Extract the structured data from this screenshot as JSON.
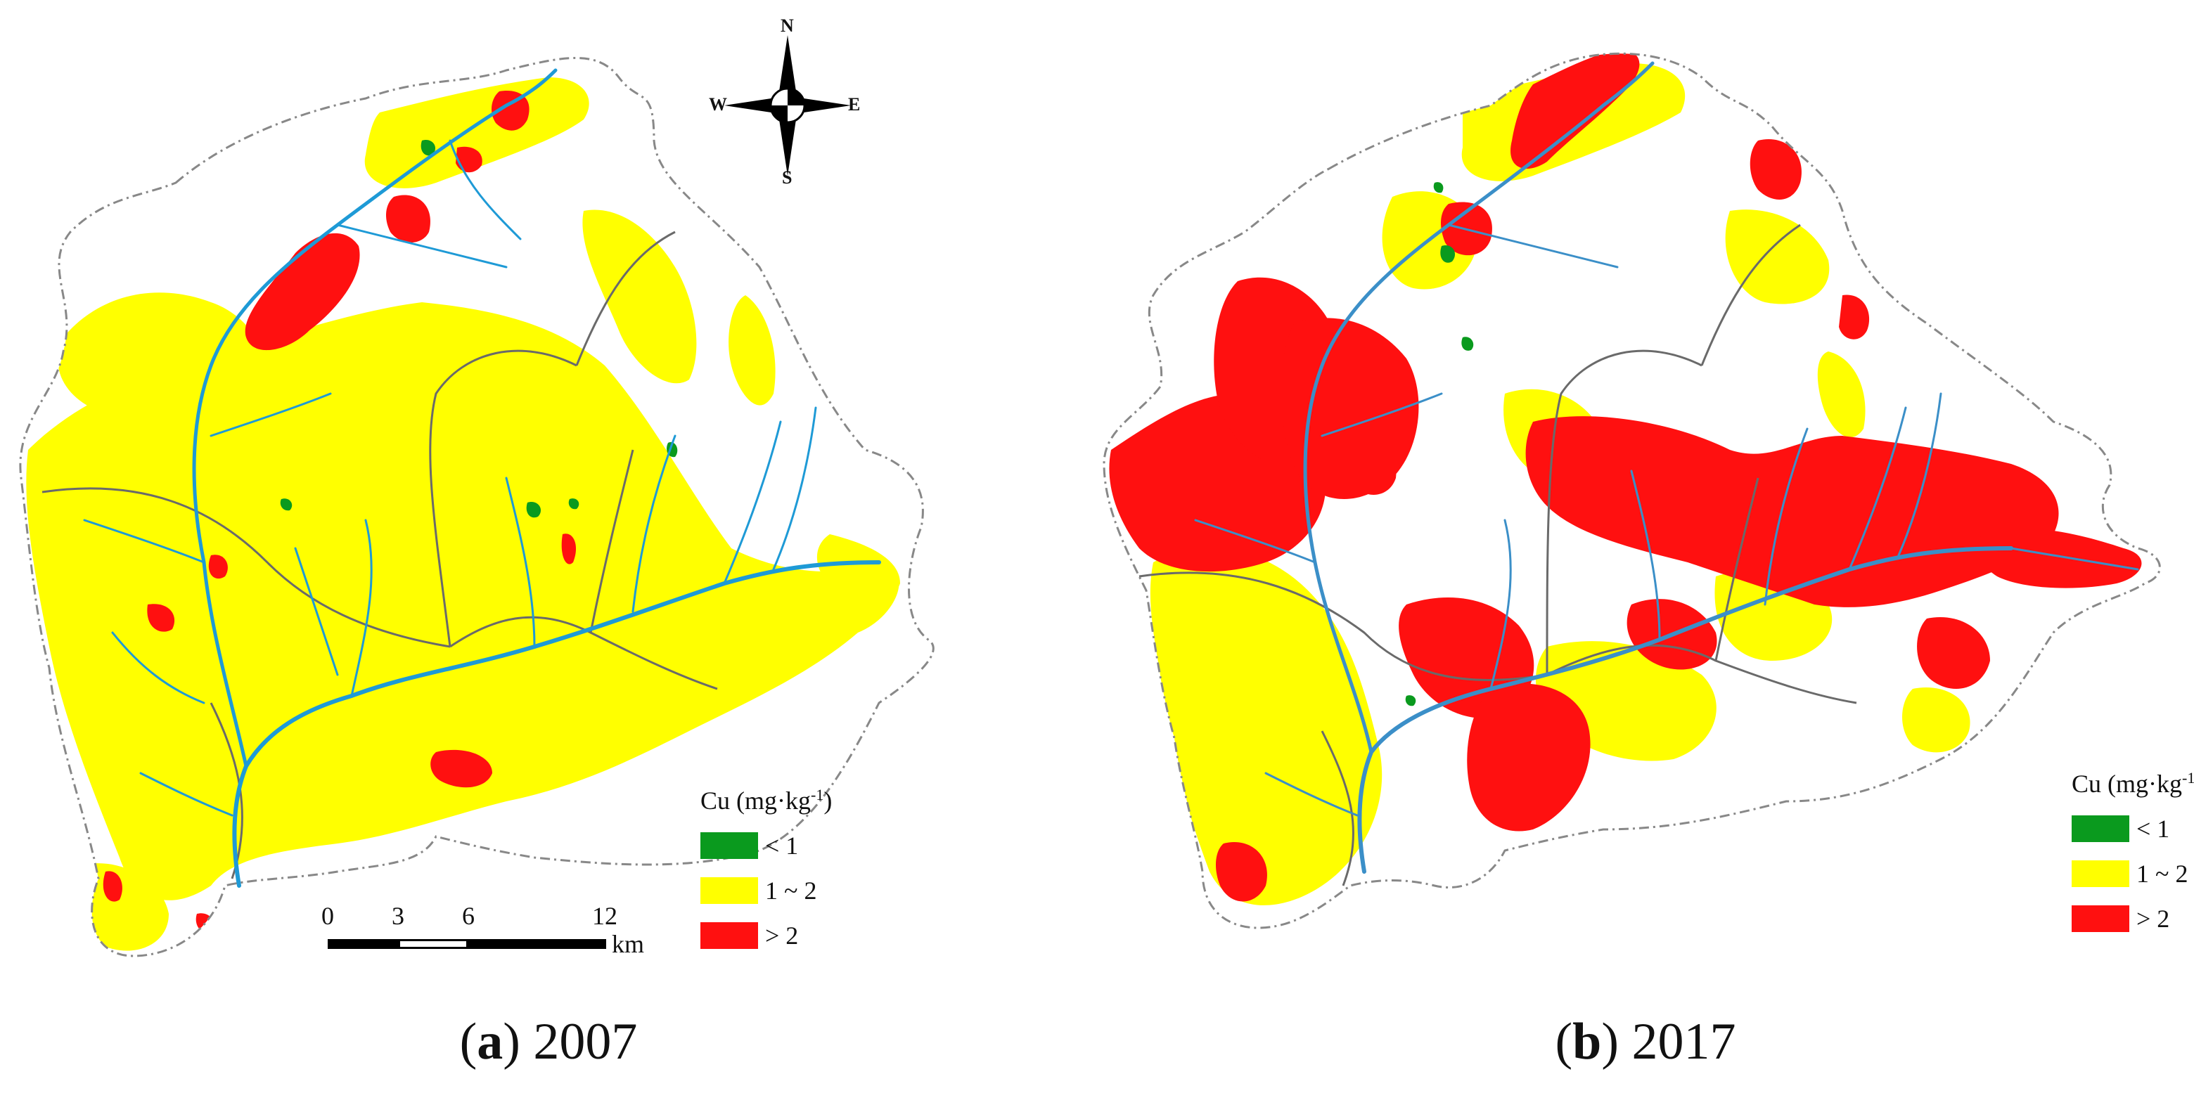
{
  "colors": {
    "class_low": "#0a9a1e",
    "class_mid": "#ffff00",
    "class_high": "#ff1010",
    "river": "#1e9ad6",
    "boundary": "#6a6a6a",
    "outline": "#888888"
  },
  "panels": [
    {
      "caption_letter": "a",
      "caption_year": "2007",
      "legend": {
        "title_text": "Cu (mg·kg",
        "title_sup": "-1",
        "title_close": ")",
        "items": [
          {
            "label": "< 1",
            "class": "low"
          },
          {
            "label": "1 ~ 2",
            "class": "mid"
          },
          {
            "label": "> 2",
            "class": "high"
          }
        ]
      },
      "scalebar": {
        "ticks": [
          "0",
          "3",
          "6",
          "12"
        ],
        "unit": "km"
      },
      "compass": {
        "n": "N",
        "s": "S",
        "e": "E",
        "w": "W"
      },
      "dominant_class": "mid"
    },
    {
      "caption_letter": "b",
      "caption_year": "2017",
      "legend": {
        "title_text": "Cu (mg·kg",
        "title_sup": "-1",
        "title_close": ")",
        "items": [
          {
            "label": "< 1",
            "class": "low"
          },
          {
            "label": "1 ~ 2",
            "class": "mid"
          },
          {
            "label": "> 2",
            "class": "high"
          }
        ]
      },
      "dominant_class": "high"
    }
  ]
}
